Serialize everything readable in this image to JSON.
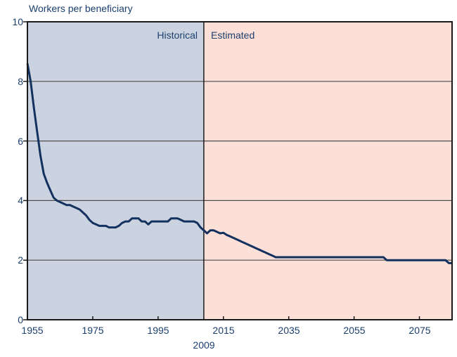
{
  "colors": {
    "text": "#1c3f6e",
    "historical_bg": "#ccd3e0",
    "estimated_bg": "#fcdfd7",
    "line": "#12315e",
    "grid": "#4d4d4d",
    "frame": "#1a1a1a",
    "background": "#ffffff"
  },
  "chart_data": {
    "type": "line",
    "title": "Workers per beneficiary",
    "xlim": [
      1955,
      2085
    ],
    "ylim": [
      0,
      10
    ],
    "yticks": [
      0,
      2,
      4,
      6,
      8,
      10
    ],
    "ytick_labels_top_to_bottom": [
      "10",
      "8",
      "6",
      "4",
      "2",
      "0"
    ],
    "xticks": [
      1955,
      1975,
      1995,
      2015,
      2035,
      2055,
      2075
    ],
    "xtick_labels": [
      "1955",
      "1975",
      "1995",
      "2015",
      "2035",
      "2055",
      "2075"
    ],
    "divider": {
      "year": 2009,
      "label": "2009"
    },
    "grid": "horizontal gridlines at 2, 4, 6, 8; vertical divider at 2009",
    "legend": "none",
    "regions": [
      {
        "label": "Historical",
        "from_year": 1955,
        "to_year": 2009,
        "fill": "#ccd3e0"
      },
      {
        "label": "Estimated",
        "from_year": 2009,
        "to_year": 2085,
        "fill": "#fcdfd7"
      }
    ],
    "series": [
      {
        "name": "Workers per beneficiary",
        "color": "#12315e",
        "points": [
          [
            1955,
            8.6
          ],
          [
            1956,
            8.0
          ],
          [
            1957,
            7.1
          ],
          [
            1958,
            6.3
          ],
          [
            1959,
            5.5
          ],
          [
            1960,
            4.9
          ],
          [
            1961,
            4.6
          ],
          [
            1962,
            4.35
          ],
          [
            1963,
            4.1
          ],
          [
            1964,
            4.0
          ],
          [
            1965,
            3.95
          ],
          [
            1966,
            3.9
          ],
          [
            1967,
            3.85
          ],
          [
            1968,
            3.85
          ],
          [
            1969,
            3.8
          ],
          [
            1970,
            3.75
          ],
          [
            1971,
            3.7
          ],
          [
            1972,
            3.6
          ],
          [
            1973,
            3.5
          ],
          [
            1974,
            3.35
          ],
          [
            1975,
            3.25
          ],
          [
            1976,
            3.2
          ],
          [
            1977,
            3.15
          ],
          [
            1978,
            3.15
          ],
          [
            1979,
            3.15
          ],
          [
            1980,
            3.1
          ],
          [
            1981,
            3.1
          ],
          [
            1982,
            3.1
          ],
          [
            1983,
            3.15
          ],
          [
            1984,
            3.25
          ],
          [
            1985,
            3.3
          ],
          [
            1986,
            3.3
          ],
          [
            1987,
            3.4
          ],
          [
            1988,
            3.4
          ],
          [
            1989,
            3.4
          ],
          [
            1990,
            3.3
          ],
          [
            1991,
            3.3
          ],
          [
            1992,
            3.2
          ],
          [
            1993,
            3.3
          ],
          [
            1994,
            3.3
          ],
          [
            1995,
            3.3
          ],
          [
            1996,
            3.3
          ],
          [
            1997,
            3.3
          ],
          [
            1998,
            3.3
          ],
          [
            1999,
            3.4
          ],
          [
            2000,
            3.4
          ],
          [
            2001,
            3.4
          ],
          [
            2002,
            3.35
          ],
          [
            2003,
            3.3
          ],
          [
            2004,
            3.3
          ],
          [
            2005,
            3.3
          ],
          [
            2006,
            3.3
          ],
          [
            2007,
            3.25
          ],
          [
            2008,
            3.1
          ],
          [
            2009,
            3.0
          ],
          [
            2010,
            2.9
          ],
          [
            2011,
            3.0
          ],
          [
            2012,
            3.0
          ],
          [
            2013,
            2.95
          ],
          [
            2014,
            2.9
          ],
          [
            2015,
            2.92
          ],
          [
            2016,
            2.85
          ],
          [
            2017,
            2.8
          ],
          [
            2018,
            2.75
          ],
          [
            2019,
            2.7
          ],
          [
            2020,
            2.65
          ],
          [
            2021,
            2.6
          ],
          [
            2022,
            2.55
          ],
          [
            2023,
            2.5
          ],
          [
            2024,
            2.45
          ],
          [
            2025,
            2.4
          ],
          [
            2026,
            2.35
          ],
          [
            2027,
            2.3
          ],
          [
            2028,
            2.25
          ],
          [
            2029,
            2.2
          ],
          [
            2030,
            2.15
          ],
          [
            2031,
            2.1
          ],
          [
            2032,
            2.1
          ],
          [
            2064,
            2.1
          ],
          [
            2065,
            2.0
          ],
          [
            2083,
            2.0
          ],
          [
            2084,
            1.9
          ],
          [
            2085,
            1.9
          ]
        ]
      }
    ]
  }
}
